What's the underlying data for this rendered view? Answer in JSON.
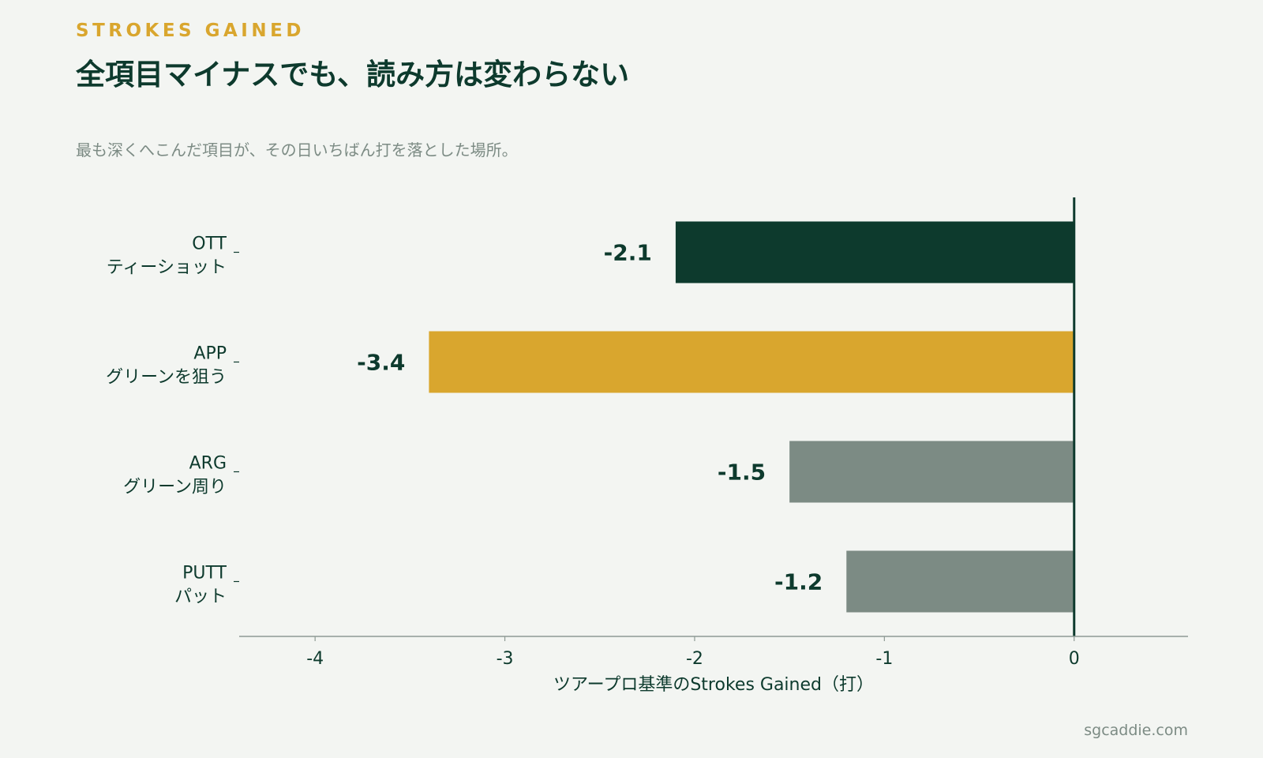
{
  "header": {
    "kicker": "STROKES GAINED",
    "title": "全項目マイナスでも、読み方は変わらない",
    "subtitle": "最も深くへこんだ項目が、その日いちばん打を落とした場所。"
  },
  "footer": {
    "source": "sgcaddie.com"
  },
  "colors": {
    "dark_green": "#0d3a2d",
    "gold": "#d9a62e",
    "gray": "#7c8b84",
    "axis": "#8e9a94",
    "background": "#f3f5f2"
  },
  "chart_data": {
    "type": "bar",
    "orientation": "horizontal",
    "categories": [
      {
        "code": "OTT",
        "label": "ティーショット"
      },
      {
        "code": "APP",
        "label": "グリーンを狙う"
      },
      {
        "code": "ARG",
        "label": "グリーン周り"
      },
      {
        "code": "PUTT",
        "label": "パット"
      }
    ],
    "values": [
      -2.1,
      -3.4,
      -1.5,
      -1.2
    ],
    "value_labels": [
      "-2.1",
      "-3.4",
      "-1.5",
      "-1.2"
    ],
    "bar_colors": [
      "#0d3a2d",
      "#d9a62e",
      "#7c8b84",
      "#7c8b84"
    ],
    "xlabel": "ツアープロ基準のStrokes Gained（打）",
    "ylabel": "",
    "xlim": [
      -4.4,
      0.6
    ],
    "xticks": [
      -4,
      -3,
      -2,
      -1,
      0
    ],
    "xtick_labels": [
      "-4",
      "-3",
      "-2",
      "-1",
      "0"
    ],
    "grid": false,
    "legend": "none"
  }
}
